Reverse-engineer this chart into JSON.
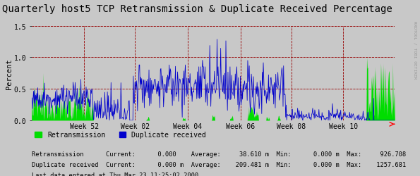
{
  "title": "Quarterly host5 TCP Retransmission & Duplicate Received Percentage",
  "ylabel": "Percent",
  "bg_color": "#c8c8c8",
  "plot_bg_color": "#c8c8c8",
  "grid_color": "#b0b0b0",
  "dashed_line_color": "#990000",
  "ylim": [
    0.0,
    1.5
  ],
  "yticks": [
    0.0,
    0.5,
    1.0,
    1.5
  ],
  "week_labels": [
    "Week 52",
    "Week 02",
    "Week 04",
    "Week 06",
    "Week 08",
    "Week 10"
  ],
  "title_fontsize": 10,
  "axis_fontsize": 7.5,
  "tick_fontsize": 7,
  "legend_label_retrans": "Retransmission",
  "legend_label_dup": "Duplicate received",
  "retrans_color": "#00dd00",
  "dup_color": "#0000cc",
  "stats_line1": "Retransmission      Current:      0.000    Average:     38.610 m  Min:      0.000 m  Max:     926.708",
  "stats_line2": "Duplicate received  Current:      0.000 m  Average:    209.481 m  Min:      0.000 m  Max:    1257.681",
  "last_data_text": "Last data entered at Thu Mar 23 11:25:02 2000.",
  "watermark": "RRDTOOL / TOBI OETIKER",
  "num_points": 700,
  "figwidth": 5.95,
  "figheight": 2.51,
  "dpi": 100
}
